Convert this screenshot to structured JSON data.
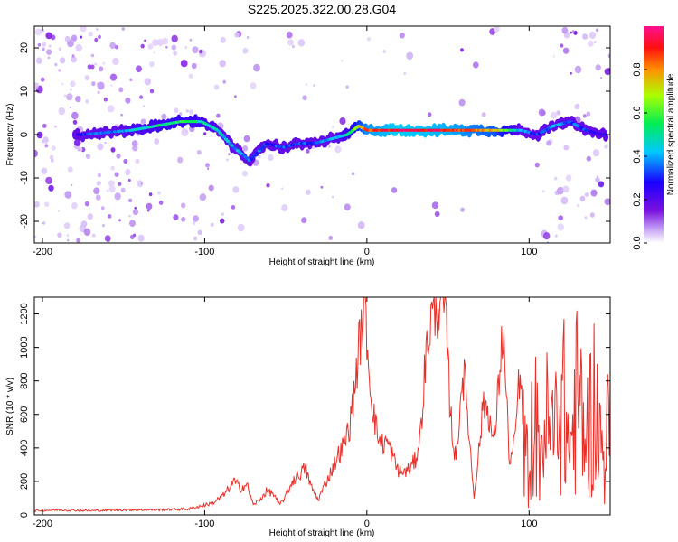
{
  "title": "S225.2025.322.00.28.G04",
  "chart_data": [
    {
      "type": "heatmap",
      "xlabel": "Height of straight line (km)",
      "ylabel": "Frequency (Hz)",
      "xlim": [
        -205,
        150
      ],
      "ylim": [
        -25,
        25
      ],
      "x_ticks": [
        -200,
        -100,
        0,
        100
      ],
      "y_ticks": [
        -20,
        -10,
        0,
        10,
        20
      ],
      "colorbar_label": "Normalized spectral amplitude",
      "colorbar_ticks": [
        "0.0",
        "0.2",
        "0.4",
        "0.6",
        "0.8"
      ],
      "colorbar_range": [
        0,
        1
      ],
      "ridge": {
        "x": [
          -175,
          -160,
          -145,
          -130,
          -115,
          -102,
          -92,
          -82,
          -72,
          -62,
          -52,
          -42,
          -32,
          -22,
          -12,
          -5,
          0,
          20,
          50,
          80,
          95,
          105,
          115,
          125,
          135,
          145
        ],
        "frequency": [
          0,
          0.5,
          1,
          2,
          3,
          3,
          1,
          -3,
          -6,
          -2,
          -3,
          -2,
          -2,
          -1,
          0,
          2,
          1,
          1,
          1,
          1,
          1,
          0,
          2,
          3,
          1,
          0
        ],
        "amplitude": [
          0.3,
          0.35,
          0.45,
          0.5,
          0.55,
          0.5,
          0.45,
          0.4,
          0.35,
          0.3,
          0.35,
          0.3,
          0.35,
          0.4,
          0.5,
          0.7,
          0.85,
          0.95,
          0.9,
          0.75,
          0.4,
          0.3,
          0.4,
          0.35,
          0.3,
          0.25
        ]
      }
    },
    {
      "type": "line",
      "xlabel": "Height of straight line (km)",
      "ylabel": "SNR (10 * v/v)",
      "xlim": [
        -205,
        150
      ],
      "ylim": [
        0,
        1300
      ],
      "x_ticks": [
        -200,
        -100,
        0,
        100
      ],
      "y_ticks": [
        0,
        200,
        400,
        600,
        800,
        1000,
        1200
      ],
      "series": [
        {
          "name": "SNR",
          "color": "#e8302a",
          "x": [
            -205,
            -190,
            -170,
            -150,
            -130,
            -110,
            -95,
            -88,
            -82,
            -78,
            -74,
            -70,
            -66,
            -62,
            -58,
            -54,
            -50,
            -46,
            -42,
            -38,
            -34,
            -30,
            -26,
            -22,
            -18,
            -14,
            -10,
            -6,
            -3,
            -1,
            0,
            1,
            3,
            6,
            9,
            12,
            15,
            18,
            21,
            24,
            27,
            30,
            33,
            36,
            39,
            42,
            45,
            47,
            49,
            51,
            53,
            55,
            57,
            59,
            61,
            63,
            66,
            69,
            72,
            75,
            78,
            80,
            82,
            84,
            86,
            88,
            91,
            94,
            97,
            100,
            103,
            106,
            110,
            115,
            120,
            125,
            130,
            135,
            140,
            145,
            150
          ],
          "values": [
            25,
            30,
            25,
            30,
            30,
            35,
            70,
            120,
            200,
            160,
            180,
            60,
            90,
            140,
            130,
            60,
            110,
            200,
            240,
            280,
            160,
            90,
            180,
            260,
            350,
            420,
            560,
            900,
            1150,
            1210,
            1100,
            900,
            700,
            500,
            420,
            440,
            380,
            290,
            250,
            260,
            280,
            330,
            480,
            900,
            1150,
            1240,
            1290,
            1260,
            1100,
            700,
            450,
            320,
            600,
            850,
            750,
            480,
            110,
            380,
            680,
            620,
            420,
            600,
            900,
            1100,
            700,
            300,
            420,
            820,
            500,
            350,
            850,
            450,
            750,
            600,
            1000,
            500,
            950,
            600,
            900,
            500,
            700
          ]
        }
      ]
    }
  ]
}
